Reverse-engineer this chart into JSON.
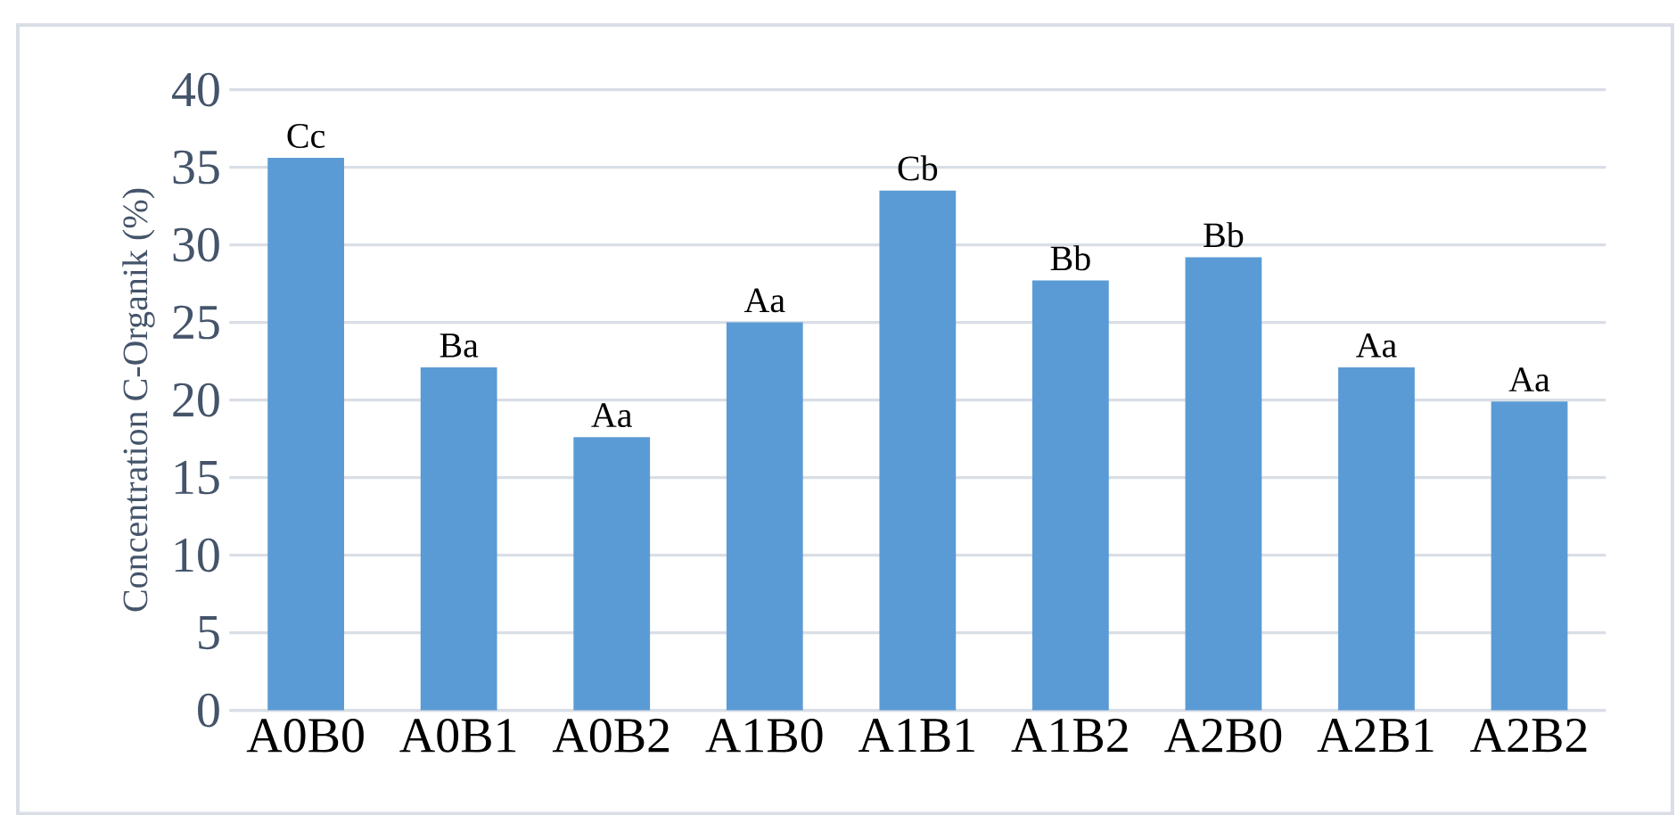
{
  "chart_data": {
    "type": "bar",
    "ylabel": "Concentration C-Organik (%)",
    "categories": [
      "A0B0",
      "A0B1",
      "A0B2",
      "A1B0",
      "A1B1",
      "A1B2",
      "A2B0",
      "A2B1",
      "A2B2"
    ],
    "values": [
      35.6,
      22.1,
      17.6,
      25.0,
      33.5,
      27.7,
      29.2,
      22.1,
      19.9
    ],
    "value_labels": [
      "Cc",
      "Ba",
      "Aa",
      "Aa",
      "Cb",
      "Bb",
      "Bb",
      "Aa",
      "Aa"
    ],
    "color": "#5b9bd5",
    "ylim": [
      0,
      40
    ],
    "yticks": [
      0,
      5,
      10,
      15,
      20,
      25,
      30,
      35,
      40
    ],
    "grid": "y"
  }
}
